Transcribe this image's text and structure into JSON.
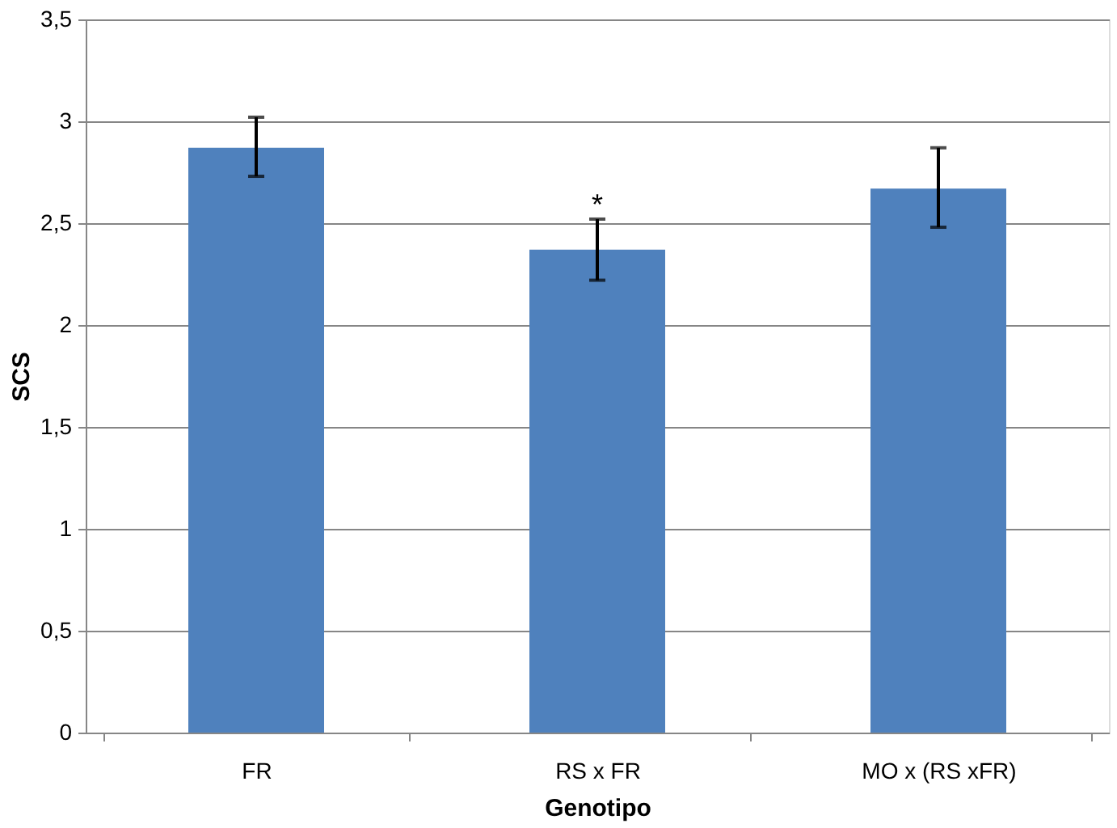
{
  "chart_data": {
    "type": "bar",
    "xlabel": "Genotipo",
    "ylabel": "SCS",
    "categories": [
      "FR",
      "RS x FR",
      "MO x (RS xFR)"
    ],
    "values": [
      2.87,
      2.37,
      2.67
    ],
    "color": "#4f81bd",
    "errors": [
      [
        2.73,
        3.02
      ],
      [
        2.22,
        2.52
      ],
      [
        2.48,
        2.87
      ]
    ],
    "ylim": [
      0,
      3.5
    ],
    "yticks": [
      0,
      {
        "value": 0.5,
        "label": "0,5"
      },
      1,
      {
        "value": 1.5,
        "label": "1,5"
      },
      2,
      {
        "value": 2.5,
        "label": "2,5"
      },
      3,
      {
        "value": 3.5,
        "label": "3,5"
      }
    ],
    "grid": "y",
    "annotations": [
      "*"
    ]
  }
}
